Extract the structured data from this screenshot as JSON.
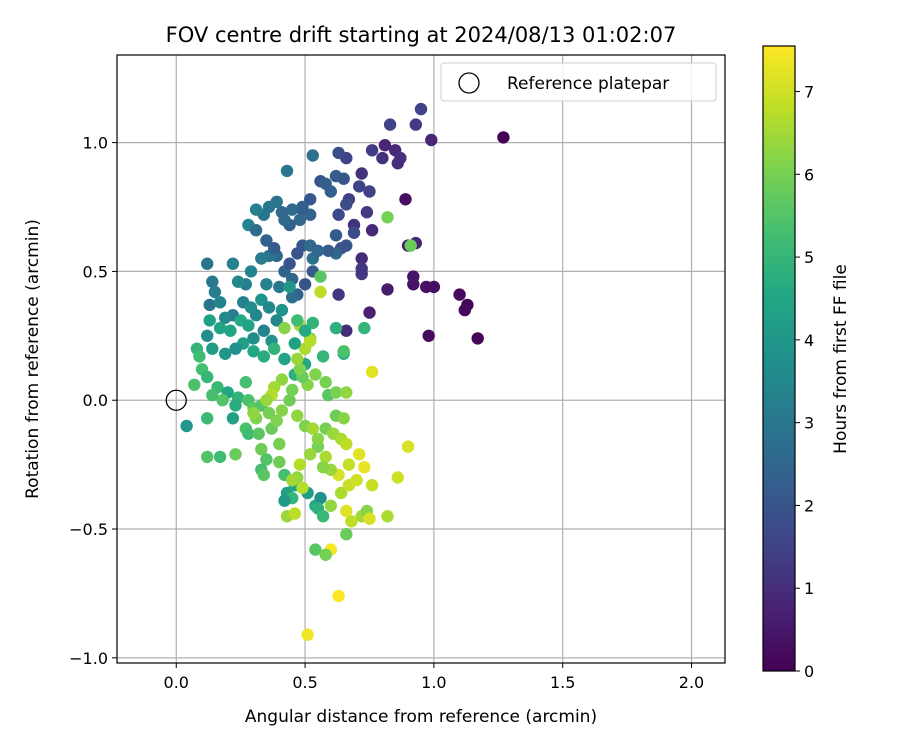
{
  "chart_data": {
    "type": "scatter",
    "title": "FOV centre drift starting at 2024/08/13 01:02:07",
    "xlabel": "Angular distance from reference (arcmin)",
    "ylabel": "Rotation from reference (arcmin)",
    "xlim": [
      -0.23,
      2.13
    ],
    "ylim": [
      -1.02,
      1.34
    ],
    "xticks": [
      0.0,
      0.5,
      1.0,
      1.5,
      2.0
    ],
    "xtick_labels": [
      "0.0",
      "0.5",
      "1.0",
      "1.5",
      "2.0"
    ],
    "yticks": [
      -1.0,
      -0.5,
      0.0,
      0.5,
      1.0
    ],
    "ytick_labels": [
      "−1.0",
      "−0.5",
      "0.0",
      "0.5",
      "1.0"
    ],
    "grid": true,
    "legend": {
      "placement": "top-right",
      "label": "Reference platepar"
    },
    "reference_point": {
      "x": 0.0,
      "y": 0.0
    },
    "colorbar": {
      "label": "Hours from first FF file",
      "colormap": "viridis",
      "range": [
        0,
        7.55
      ],
      "ticks": [
        0,
        1,
        2,
        3,
        4,
        5,
        6,
        7
      ],
      "tick_labels": [
        "0",
        "1",
        "2",
        "3",
        "4",
        "5",
        "6",
        "7"
      ]
    },
    "point_columns": [
      "x",
      "y",
      "hours"
    ],
    "points": [
      [
        1.27,
        1.02,
        0.05
      ],
      [
        1.17,
        0.24,
        0.1
      ],
      [
        1.13,
        0.37,
        0.1
      ],
      [
        1.12,
        0.35,
        0.15
      ],
      [
        1.1,
        0.41,
        0.2
      ],
      [
        0.98,
        0.25,
        0.2
      ],
      [
        1.0,
        0.44,
        0.3
      ],
      [
        0.97,
        0.44,
        0.35
      ],
      [
        0.92,
        0.45,
        0.4
      ],
      [
        0.92,
        0.48,
        0.45
      ],
      [
        0.89,
        0.78,
        0.3
      ],
      [
        0.82,
        0.43,
        0.6
      ],
      [
        0.9,
        0.6,
        0.6
      ],
      [
        0.93,
        0.61,
        0.8
      ],
      [
        0.76,
        0.66,
        0.9
      ],
      [
        0.75,
        0.34,
        0.7
      ],
      [
        0.72,
        0.55,
        1.0
      ],
      [
        0.69,
        0.68,
        1.1
      ],
      [
        0.66,
        0.27,
        1.0
      ],
      [
        0.63,
        0.41,
        1.2
      ],
      [
        0.72,
        0.49,
        1.3
      ],
      [
        0.72,
        0.51,
        1.2
      ],
      [
        0.99,
        1.01,
        0.8
      ],
      [
        0.95,
        1.13,
        1.5
      ],
      [
        0.93,
        1.07,
        1.3
      ],
      [
        0.83,
        1.07,
        1.5
      ],
      [
        0.85,
        0.97,
        0.9
      ],
      [
        0.87,
        0.94,
        1.1
      ],
      [
        0.86,
        0.92,
        1.0
      ],
      [
        0.8,
        0.94,
        1.1
      ],
      [
        0.81,
        0.99,
        0.8
      ],
      [
        0.76,
        0.97,
        1.3
      ],
      [
        0.72,
        0.88,
        1.1
      ],
      [
        0.75,
        0.81,
        1.5
      ],
      [
        0.74,
        0.73,
        1.3
      ],
      [
        0.71,
        0.83,
        1.6
      ],
      [
        0.67,
        0.78,
        1.4
      ],
      [
        0.66,
        0.94,
        1.5
      ],
      [
        0.63,
        0.96,
        1.8
      ],
      [
        0.62,
        0.87,
        2.2
      ],
      [
        0.65,
        0.86,
        2.0
      ],
      [
        0.66,
        0.76,
        1.8
      ],
      [
        0.63,
        0.72,
        1.7
      ],
      [
        0.69,
        0.65,
        1.8
      ],
      [
        0.66,
        0.6,
        2.0
      ],
      [
        0.62,
        0.64,
        2.2
      ],
      [
        0.64,
        0.59,
        1.9
      ],
      [
        0.62,
        0.57,
        2.5
      ],
      [
        0.59,
        0.58,
        2.2
      ],
      [
        0.6,
        0.81,
        2.3
      ],
      [
        0.56,
        0.85,
        2.0
      ],
      [
        0.58,
        0.84,
        2.3
      ],
      [
        0.53,
        0.95,
        2.8
      ],
      [
        0.52,
        0.72,
        2.4
      ],
      [
        0.52,
        0.78,
        2.1
      ],
      [
        0.49,
        0.74,
        2.2
      ],
      [
        0.49,
        0.75,
        2.3
      ],
      [
        0.48,
        0.7,
        2.5
      ],
      [
        0.45,
        0.74,
        2.6
      ],
      [
        0.44,
        0.68,
        2.3
      ],
      [
        0.42,
        0.7,
        2.6
      ],
      [
        0.41,
        0.73,
        2.5
      ],
      [
        0.43,
        0.89,
        3.0
      ],
      [
        0.39,
        0.77,
        2.9
      ],
      [
        0.36,
        0.75,
        3.0
      ],
      [
        0.34,
        0.72,
        3.0
      ],
      [
        0.31,
        0.74,
        3.2
      ],
      [
        0.28,
        0.68,
        3.4
      ],
      [
        0.31,
        0.66,
        2.7
      ],
      [
        0.35,
        0.62,
        2.4
      ],
      [
        0.39,
        0.56,
        2.6
      ],
      [
        0.36,
        0.56,
        2.9
      ],
      [
        0.38,
        0.59,
        2.2
      ],
      [
        0.47,
        0.57,
        2.0
      ],
      [
        0.49,
        0.6,
        2.1
      ],
      [
        0.52,
        0.6,
        2.6
      ],
      [
        0.53,
        0.55,
        2.8
      ],
      [
        0.55,
        0.58,
        2.5
      ],
      [
        0.5,
        0.45,
        2.0
      ],
      [
        0.53,
        0.5,
        2.2
      ],
      [
        0.42,
        0.5,
        2.4
      ],
      [
        0.44,
        0.53,
        2.0
      ],
      [
        0.45,
        0.47,
        2.5
      ],
      [
        0.47,
        0.41,
        2.4
      ],
      [
        0.45,
        0.4,
        2.7
      ],
      [
        0.4,
        0.44,
        3.0
      ],
      [
        0.35,
        0.45,
        3.3
      ],
      [
        0.33,
        0.55,
        3.1
      ],
      [
        0.29,
        0.5,
        3.4
      ],
      [
        0.27,
        0.45,
        3.2
      ],
      [
        0.24,
        0.46,
        3.6
      ],
      [
        0.22,
        0.53,
        3.3
      ],
      [
        0.14,
        0.46,
        3.0
      ],
      [
        0.12,
        0.53,
        2.9
      ],
      [
        0.15,
        0.42,
        3.2
      ],
      [
        0.13,
        0.37,
        2.9
      ],
      [
        0.17,
        0.38,
        3.4
      ],
      [
        0.22,
        0.33,
        3.2
      ],
      [
        0.19,
        0.32,
        3.6
      ],
      [
        0.26,
        0.38,
        3.3
      ],
      [
        0.29,
        0.36,
        3.7
      ],
      [
        0.31,
        0.33,
        3.5
      ],
      [
        0.33,
        0.39,
        3.9
      ],
      [
        0.36,
        0.36,
        3.6
      ],
      [
        0.41,
        0.35,
        3.9
      ],
      [
        0.39,
        0.31,
        3.5
      ],
      [
        0.44,
        0.44,
        4.0
      ],
      [
        0.3,
        0.24,
        3.7
      ],
      [
        0.34,
        0.27,
        3.4
      ],
      [
        0.37,
        0.23,
        3.9
      ],
      [
        0.26,
        0.22,
        4.2
      ],
      [
        0.23,
        0.2,
        3.8
      ],
      [
        0.19,
        0.18,
        4.0
      ],
      [
        0.14,
        0.2,
        4.2
      ],
      [
        0.12,
        0.25,
        3.7
      ],
      [
        0.13,
        0.31,
        4.3
      ],
      [
        0.17,
        0.28,
        4.4
      ],
      [
        0.21,
        0.27,
        4.5
      ],
      [
        0.25,
        0.31,
        4.6
      ],
      [
        0.28,
        0.29,
        4.4
      ],
      [
        0.3,
        0.19,
        4.5
      ],
      [
        0.34,
        0.17,
        4.7
      ],
      [
        0.38,
        0.2,
        4.9
      ],
      [
        0.42,
        0.16,
        4.4
      ],
      [
        0.46,
        0.1,
        4.8
      ],
      [
        0.5,
        0.14,
        4.6
      ],
      [
        0.57,
        0.17,
        5.0
      ],
      [
        0.65,
        0.18,
        4.8
      ],
      [
        0.73,
        0.28,
        5.0
      ],
      [
        0.08,
        0.2,
        5.0
      ],
      [
        0.09,
        0.17,
        5.2
      ],
      [
        0.1,
        0.12,
        5.3
      ],
      [
        0.12,
        0.09,
        5.0
      ],
      [
        0.07,
        0.06,
        5.4
      ],
      [
        0.16,
        0.05,
        5.1
      ],
      [
        0.2,
        0.03,
        4.5
      ],
      [
        0.14,
        0.02,
        5.3
      ],
      [
        0.18,
        0.0,
        5.5
      ],
      [
        0.24,
        0.01,
        4.9
      ],
      [
        0.27,
        0.07,
        5.3
      ],
      [
        0.28,
        0.0,
        5.4
      ],
      [
        0.3,
        -0.03,
        5.7
      ],
      [
        0.33,
        -0.02,
        5.5
      ],
      [
        0.23,
        -0.02,
        4.7
      ],
      [
        0.22,
        -0.07,
        4.3
      ],
      [
        0.12,
        -0.07,
        5.1
      ],
      [
        0.04,
        -0.1,
        4.0
      ],
      [
        0.17,
        -0.22,
        5.2
      ],
      [
        0.12,
        -0.22,
        5.5
      ],
      [
        0.23,
        -0.21,
        5.8
      ],
      [
        0.27,
        -0.11,
        5.4
      ],
      [
        0.28,
        -0.13,
        5.2
      ],
      [
        0.32,
        -0.13,
        5.6
      ],
      [
        0.33,
        -0.19,
        5.9
      ],
      [
        0.35,
        -0.23,
        5.5
      ],
      [
        0.33,
        -0.27,
        5.3
      ],
      [
        0.34,
        -0.29,
        5.6
      ],
      [
        0.4,
        -0.24,
        5.9
      ],
      [
        0.42,
        -0.29,
        5.3
      ],
      [
        0.43,
        -0.36,
        4.3
      ],
      [
        0.46,
        -0.33,
        4.5
      ],
      [
        0.45,
        -0.38,
        5.0
      ],
      [
        0.42,
        -0.39,
        4.1
      ],
      [
        0.51,
        -0.36,
        4.2
      ],
      [
        0.54,
        -0.41,
        4.5
      ],
      [
        0.56,
        -0.38,
        3.8
      ],
      [
        0.55,
        -0.42,
        4.8
      ],
      [
        0.57,
        -0.45,
        5.1
      ],
      [
        0.43,
        -0.45,
        6.4
      ],
      [
        0.46,
        -0.44,
        6.8
      ],
      [
        0.6,
        -0.41,
        6.3
      ],
      [
        0.64,
        -0.36,
        6.6
      ],
      [
        0.67,
        -0.33,
        6.9
      ],
      [
        0.7,
        -0.31,
        7.0
      ],
      [
        0.66,
        -0.43,
        7.2
      ],
      [
        0.68,
        -0.47,
        6.8
      ],
      [
        0.66,
        -0.52,
        5.8
      ],
      [
        0.72,
        -0.45,
        6.5
      ],
      [
        0.74,
        -0.43,
        6.2
      ],
      [
        0.75,
        -0.46,
        7.1
      ],
      [
        0.76,
        -0.33,
        6.9
      ],
      [
        0.82,
        -0.45,
        6.6
      ],
      [
        0.86,
        -0.3,
        7.0
      ],
      [
        0.9,
        -0.18,
        7.1
      ],
      [
        0.73,
        -0.26,
        7.3
      ],
      [
        0.71,
        -0.21,
        7.2
      ],
      [
        0.67,
        -0.25,
        6.9
      ],
      [
        0.63,
        -0.29,
        7.1
      ],
      [
        0.6,
        -0.27,
        6.4
      ],
      [
        0.58,
        -0.22,
        6.6
      ],
      [
        0.57,
        -0.26,
        6.2
      ],
      [
        0.55,
        -0.18,
        6.0
      ],
      [
        0.52,
        -0.21,
        6.4
      ],
      [
        0.48,
        -0.25,
        6.7
      ],
      [
        0.47,
        -0.3,
        6.3
      ],
      [
        0.49,
        -0.34,
        6.7
      ],
      [
        0.45,
        -0.31,
        6.5
      ],
      [
        0.4,
        -0.17,
        6.0
      ],
      [
        0.37,
        -0.11,
        5.8
      ],
      [
        0.39,
        -0.08,
        6.1
      ],
      [
        0.41,
        -0.04,
        6.2
      ],
      [
        0.44,
        0.0,
        5.9
      ],
      [
        0.45,
        0.04,
        6.0
      ],
      [
        0.47,
        -0.06,
        6.3
      ],
      [
        0.5,
        -0.1,
        6.1
      ],
      [
        0.53,
        -0.11,
        6.5
      ],
      [
        0.55,
        -0.15,
        6.2
      ],
      [
        0.58,
        -0.11,
        6.0
      ],
      [
        0.61,
        -0.13,
        6.4
      ],
      [
        0.64,
        -0.15,
        6.6
      ],
      [
        0.66,
        -0.17,
        6.8
      ],
      [
        0.62,
        -0.06,
        5.9
      ],
      [
        0.65,
        -0.07,
        6.2
      ],
      [
        0.59,
        0.02,
        5.6
      ],
      [
        0.62,
        0.03,
        6.0
      ],
      [
        0.66,
        0.03,
        6.3
      ],
      [
        0.58,
        0.07,
        6.0
      ],
      [
        0.54,
        0.1,
        6.1
      ],
      [
        0.51,
        0.06,
        6.2
      ],
      [
        0.49,
        0.09,
        5.8
      ],
      [
        0.48,
        0.12,
        6.1
      ],
      [
        0.47,
        0.16,
        6.4
      ],
      [
        0.5,
        0.2,
        6.6
      ],
      [
        0.52,
        0.24,
        6.2
      ],
      [
        0.41,
        0.08,
        6.3
      ],
      [
        0.38,
        0.05,
        6.5
      ],
      [
        0.37,
        0.02,
        6.7
      ],
      [
        0.35,
        0.0,
        6.4
      ],
      [
        0.36,
        -0.05,
        6.0
      ],
      [
        0.31,
        -0.07,
        6.1
      ],
      [
        0.3,
        -0.05,
        6.3
      ],
      [
        0.76,
        0.11,
        7.2
      ],
      [
        0.6,
        -0.58,
        7.5
      ],
      [
        0.63,
        -0.76,
        7.5
      ],
      [
        0.51,
        -0.91,
        7.4
      ],
      [
        0.54,
        -0.58,
        5.6
      ],
      [
        0.58,
        -0.6,
        6.0
      ],
      [
        0.42,
        0.28,
        6.2
      ],
      [
        0.48,
        0.29,
        6.6
      ],
      [
        0.52,
        0.23,
        6.7
      ],
      [
        0.56,
        0.42,
        6.8
      ],
      [
        0.56,
        0.48,
        5.6
      ],
      [
        0.82,
        0.71,
        6.0
      ],
      [
        0.91,
        0.6,
        5.8
      ],
      [
        0.62,
        0.28,
        4.8
      ],
      [
        0.65,
        0.19,
        5.4
      ],
      [
        0.46,
        0.22,
        4.3
      ],
      [
        0.5,
        0.27,
        4.6
      ],
      [
        0.53,
        0.3,
        4.9
      ],
      [
        0.47,
        0.31,
        5.2
      ]
    ]
  }
}
